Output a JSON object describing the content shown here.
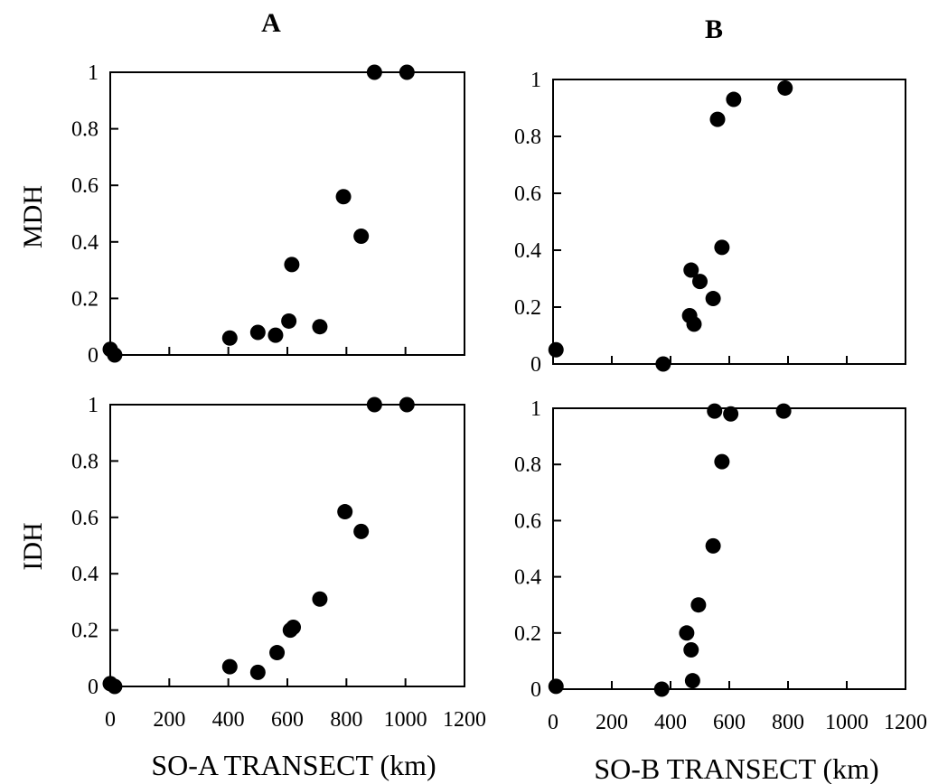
{
  "column_titles": [
    "A",
    "B"
  ],
  "row_labels": [
    "MDH",
    "IDH"
  ],
  "x_titles": [
    "SO-A TRANSECT (km)",
    "SO-B TRANSECT (km)"
  ],
  "y_ticks": [
    "0",
    "0.2",
    "0.4",
    "0.6",
    "0.8",
    "1"
  ],
  "x_ticks": [
    "0",
    "200",
    "400",
    "600",
    "800",
    "1000",
    "1200"
  ],
  "chart_data": [
    {
      "type": "scatter",
      "panel": "A",
      "ylabel": "MDH",
      "xlabel": "",
      "xlim": [
        0,
        1200
      ],
      "ylim": [
        0,
        1
      ],
      "grid": false,
      "points": [
        [
          0,
          0.02
        ],
        [
          15,
          0.0
        ],
        [
          405,
          0.06
        ],
        [
          500,
          0.08
        ],
        [
          560,
          0.07
        ],
        [
          605,
          0.12
        ],
        [
          615,
          0.32
        ],
        [
          710,
          0.1
        ],
        [
          790,
          0.56
        ],
        [
          850,
          0.42
        ],
        [
          895,
          1.0
        ],
        [
          1005,
          1.0
        ]
      ]
    },
    {
      "type": "scatter",
      "panel": "B",
      "ylabel": "",
      "xlabel": "",
      "xlim": [
        0,
        1200
      ],
      "ylim": [
        0,
        1
      ],
      "grid": false,
      "points": [
        [
          10,
          0.05
        ],
        [
          375,
          0.0
        ],
        [
          465,
          0.17
        ],
        [
          470,
          0.33
        ],
        [
          480,
          0.14
        ],
        [
          500,
          0.29
        ],
        [
          545,
          0.23
        ],
        [
          560,
          0.86
        ],
        [
          575,
          0.41
        ],
        [
          615,
          0.93
        ],
        [
          790,
          0.97
        ]
      ]
    },
    {
      "type": "scatter",
      "panel": "A",
      "ylabel": "IDH",
      "xlabel": "SO-A TRANSECT (km)",
      "xlim": [
        0,
        1200
      ],
      "ylim": [
        0,
        1
      ],
      "grid": false,
      "points": [
        [
          0,
          0.01
        ],
        [
          15,
          0.0
        ],
        [
          405,
          0.07
        ],
        [
          500,
          0.05
        ],
        [
          565,
          0.12
        ],
        [
          610,
          0.2
        ],
        [
          620,
          0.21
        ],
        [
          710,
          0.31
        ],
        [
          795,
          0.62
        ],
        [
          850,
          0.55
        ],
        [
          895,
          1.0
        ],
        [
          1005,
          1.0
        ]
      ]
    },
    {
      "type": "scatter",
      "panel": "B",
      "ylabel": "",
      "xlabel": "SO-B TRANSECT (km)",
      "xlim": [
        0,
        1200
      ],
      "ylim": [
        0,
        1
      ],
      "grid": false,
      "points": [
        [
          10,
          0.01
        ],
        [
          370,
          0.0
        ],
        [
          455,
          0.2
        ],
        [
          470,
          0.14
        ],
        [
          475,
          0.03
        ],
        [
          495,
          0.3
        ],
        [
          545,
          0.51
        ],
        [
          550,
          0.99
        ],
        [
          575,
          0.81
        ],
        [
          605,
          0.98
        ],
        [
          785,
          0.99
        ]
      ]
    }
  ]
}
